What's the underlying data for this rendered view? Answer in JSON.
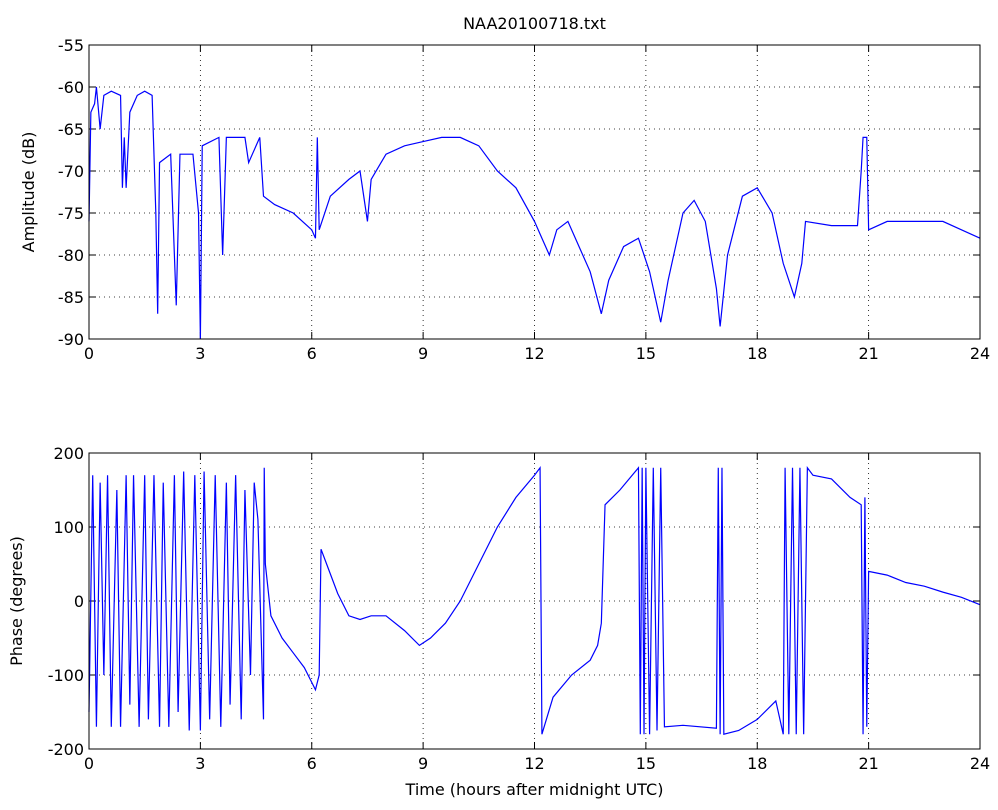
{
  "chart_data": [
    {
      "type": "line",
      "title": "NAA20100718.txt",
      "ylabel": "Amplitude (dB)",
      "xlim": [
        0,
        24
      ],
      "xticks": [
        0,
        3,
        6,
        9,
        12,
        15,
        18,
        21,
        24
      ],
      "ylim": [
        -90,
        -55
      ],
      "yticks": [
        -90,
        -85,
        -80,
        -75,
        -70,
        -65,
        -60,
        -55
      ],
      "grid": true,
      "series": [
        {
          "name": "Amplitude",
          "color": "#0000ff",
          "x": [
            0,
            0.05,
            0.15,
            0.2,
            0.3,
            0.4,
            0.6,
            0.85,
            0.9,
            0.95,
            1.0,
            1.1,
            1.3,
            1.5,
            1.7,
            1.8,
            1.85,
            1.9,
            2.2,
            2.35,
            2.45,
            2.8,
            2.95,
            3.0,
            3.05,
            3.5,
            3.6,
            3.7,
            4.2,
            4.3,
            4.5,
            4.6,
            4.7,
            5.0,
            5.5,
            6.0,
            6.1,
            6.15,
            6.2,
            6.5,
            7.0,
            7.3,
            7.5,
            7.6,
            8.0,
            8.5,
            9.0,
            9.5,
            10.0,
            10.5,
            11.0,
            11.5,
            12.0,
            12.2,
            12.4,
            12.6,
            12.9,
            13.2,
            13.5,
            13.8,
            14.0,
            14.4,
            14.8,
            15.1,
            15.4,
            15.6,
            16.0,
            16.3,
            16.6,
            16.9,
            17.0,
            17.2,
            17.6,
            18.0,
            18.4,
            18.7,
            19.0,
            19.2,
            19.3,
            20.0,
            20.7,
            20.8,
            20.85,
            20.95,
            21.0,
            21.5,
            22.0,
            22.5,
            23.0,
            23.5,
            24.0
          ],
          "values": [
            -76,
            -63,
            -62,
            -60,
            -65,
            -61,
            -60.5,
            -61,
            -72,
            -66,
            -72,
            -63,
            -61,
            -60.5,
            -61,
            -75,
            -87,
            -69,
            -68,
            -86,
            -68,
            -68,
            -75,
            -90,
            -67,
            -66,
            -80,
            -66,
            -66,
            -69,
            -67,
            -66,
            -73,
            -74,
            -75,
            -77,
            -78,
            -66,
            -77,
            -73,
            -71,
            -70,
            -76,
            -71,
            -68,
            -67,
            -66.5,
            -66,
            -66,
            -67,
            -70,
            -72,
            -76,
            -78,
            -80,
            -77,
            -76,
            -79,
            -82,
            -87,
            -83,
            -79,
            -78,
            -82,
            -88,
            -83,
            -75,
            -73.5,
            -76,
            -84,
            -88.5,
            -80,
            -73,
            -72,
            -75,
            -81,
            -85,
            -81,
            -76,
            -76.5,
            -76.5,
            -70,
            -66,
            -66,
            -77,
            -76,
            -76,
            -76,
            -76,
            -77,
            -78
          ]
        }
      ]
    },
    {
      "type": "line",
      "ylabel": "Phase (degrees)",
      "xlabel": "Time (hours after midnight UTC)",
      "xlim": [
        0,
        24
      ],
      "xticks": [
        0,
        3,
        6,
        9,
        12,
        15,
        18,
        21,
        24
      ],
      "ylim": [
        -200,
        200
      ],
      "yticks": [
        -200,
        -100,
        0,
        100,
        200
      ],
      "grid": true,
      "series": [
        {
          "name": "Phase",
          "color": "#0000ff",
          "x": [
            0,
            0.1,
            0.2,
            0.3,
            0.4,
            0.5,
            0.6,
            0.75,
            0.85,
            1.0,
            1.1,
            1.2,
            1.35,
            1.5,
            1.6,
            1.75,
            1.9,
            2.0,
            2.15,
            2.3,
            2.4,
            2.55,
            2.7,
            2.85,
            3.0,
            3.1,
            3.25,
            3.4,
            3.55,
            3.7,
            3.8,
            3.95,
            4.1,
            4.2,
            4.35,
            4.45,
            4.55,
            4.7,
            4.72,
            4.75,
            4.9,
            5.2,
            5.5,
            5.8,
            6.0,
            6.1,
            6.2,
            6.25,
            6.4,
            6.7,
            7.0,
            7.3,
            7.6,
            8.0,
            8.5,
            8.9,
            9.2,
            9.6,
            10.0,
            10.5,
            11.0,
            11.5,
            12.0,
            12.15,
            12.2,
            12.5,
            13.0,
            13.5,
            13.7,
            13.8,
            13.9,
            14.3,
            14.8,
            14.85,
            14.9,
            14.95,
            15.0,
            15.1,
            15.2,
            15.3,
            15.4,
            15.5,
            16.0,
            16.9,
            16.95,
            17.0,
            17.05,
            17.1,
            17.5,
            18.0,
            18.5,
            18.7,
            18.75,
            18.85,
            18.95,
            19.05,
            19.15,
            19.25,
            19.35,
            19.5,
            20.0,
            20.5,
            20.8,
            20.85,
            20.9,
            20.95,
            21.0,
            21.5,
            22.0,
            22.5,
            23.0,
            23.5,
            24.0
          ],
          "values": [
            -150,
            170,
            -170,
            160,
            -100,
            170,
            -170,
            150,
            -170,
            170,
            -140,
            170,
            -170,
            170,
            -160,
            170,
            -170,
            160,
            -170,
            170,
            -150,
            175,
            -175,
            170,
            -175,
            175,
            -160,
            170,
            -170,
            160,
            -140,
            170,
            -160,
            150,
            -100,
            160,
            110,
            -160,
            180,
            50,
            -20,
            -50,
            -70,
            -90,
            -110,
            -120,
            -100,
            70,
            50,
            10,
            -20,
            -25,
            -20,
            -20,
            -40,
            -60,
            -50,
            -30,
            0,
            50,
            100,
            140,
            170,
            180,
            -180,
            -130,
            -100,
            -80,
            -60,
            -30,
            130,
            150,
            180,
            -180,
            180,
            -180,
            180,
            -180,
            180,
            -175,
            180,
            -170,
            -168,
            -172,
            180,
            -180,
            180,
            -180,
            -175,
            -160,
            -135,
            -180,
            180,
            -180,
            180,
            -180,
            180,
            -180,
            180,
            170,
            165,
            140,
            130,
            -180,
            140,
            -170,
            40,
            35,
            25,
            20,
            12,
            5,
            -5
          ]
        }
      ]
    }
  ]
}
